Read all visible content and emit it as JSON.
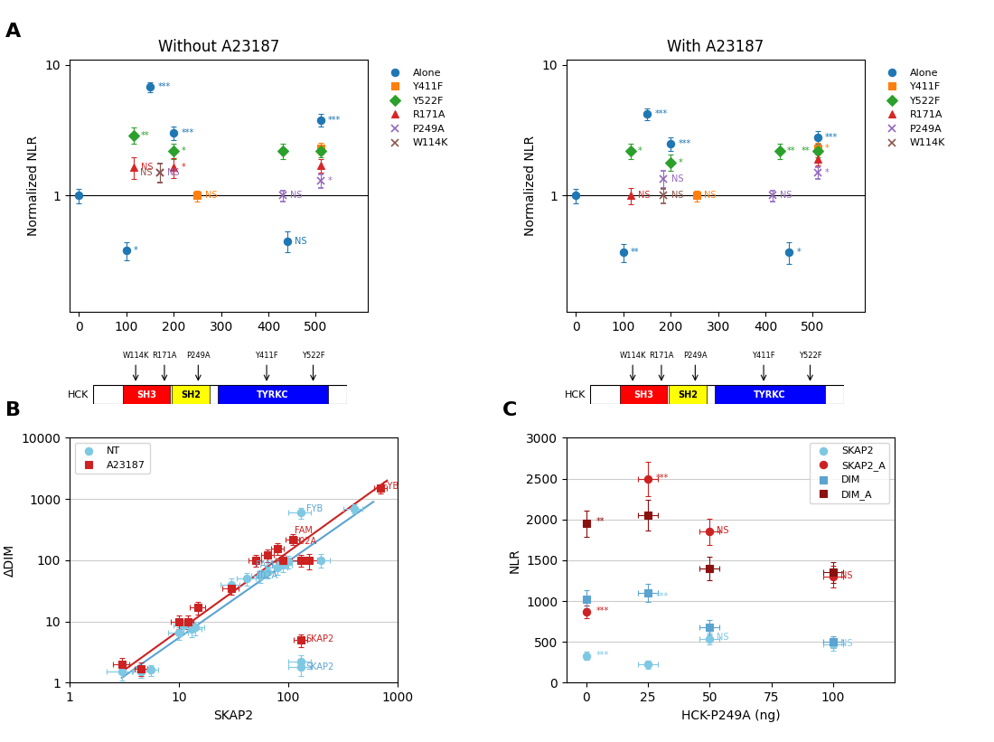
{
  "chart_data": [
    {
      "type": "scatter",
      "panel_label": "A",
      "title": "Without A23187",
      "ylabel": "Normalized NLR",
      "log": "y",
      "xlim": [
        -20,
        610
      ],
      "xticks": [
        0,
        100,
        200,
        300,
        400,
        500
      ],
      "ylim": [
        0.13,
        11
      ],
      "yticks": [
        1,
        10
      ],
      "hline": 1,
      "grid": false,
      "legend": "upper right",
      "series": [
        {
          "name": "Alone",
          "marker": "circle",
          "x": [
            0,
            100,
            150,
            200,
            440,
            510
          ],
          "values": [
            1.0,
            0.38,
            6.8,
            3.0,
            0.45,
            3.8
          ],
          "yerr": [
            0.12,
            0.06,
            0.6,
            0.35,
            0.08,
            0.4
          ],
          "point_labels": [
            null,
            "*",
            "***",
            "***",
            "NS",
            "***"
          ]
        },
        {
          "name": "Y411F",
          "marker": "square",
          "x": [
            250,
            510
          ],
          "values": [
            1.0,
            2.3
          ],
          "yerr": [
            0.1,
            0.25
          ],
          "point_labels": [
            "NS",
            null
          ]
        },
        {
          "name": "Y522F",
          "marker": "diamond",
          "x": [
            115,
            200,
            430,
            510
          ],
          "values": [
            2.9,
            2.2,
            2.2,
            2.2
          ],
          "yerr": [
            0.4,
            0.3,
            0.3,
            0.25
          ],
          "point_labels": [
            "**",
            "*",
            null,
            null
          ]
        },
        {
          "name": "R171A",
          "marker": "triangle",
          "x": [
            115,
            200,
            510
          ],
          "values": [
            1.65,
            1.65,
            1.7
          ],
          "yerr": [
            0.3,
            0.28,
            0.2
          ],
          "point_labels": [
            "NS",
            "*",
            null
          ]
        },
        {
          "name": "P249A",
          "marker": "x",
          "x": [
            170,
            430,
            510
          ],
          "values": [
            1.5,
            1.0,
            1.3
          ],
          "yerr": [
            0.25,
            0.1,
            0.15
          ],
          "point_labels": [
            "NS",
            "NS",
            "*"
          ]
        },
        {
          "name": "W114K",
          "marker": "x",
          "x": [
            170
          ],
          "values": [
            1.5
          ],
          "yerr": [
            0.25
          ],
          "point_labels": [
            "NS"
          ]
        }
      ],
      "protein": "HCK",
      "domain_range": [
        0,
        600
      ],
      "domains": [
        {
          "name": "SH3",
          "start": 70,
          "end": 180,
          "color": "red"
        },
        {
          "name": "SH2",
          "start": 185,
          "end": 275,
          "color": "yellow"
        },
        {
          "name": "TYRKC",
          "start": 295,
          "end": 555,
          "color": "blue"
        }
      ],
      "mutations": [
        {
          "x": 100,
          "label": "W114K"
        },
        {
          "x": 168,
          "label": "R171A"
        },
        {
          "x": 248,
          "label": "P249A"
        },
        {
          "x": 410,
          "label": "Y411F"
        },
        {
          "x": 520,
          "label": "Y522F"
        }
      ]
    },
    {
      "type": "scatter",
      "title": "With A23187",
      "ylabel": "Normalized NLR",
      "log": "y",
      "xlim": [
        -20,
        610
      ],
      "xticks": [
        0,
        100,
        200,
        300,
        400,
        500
      ],
      "ylim": [
        0.13,
        11
      ],
      "yticks": [
        1,
        10
      ],
      "hline": 1,
      "grid": false,
      "legend": "upper right",
      "series": [
        {
          "name": "Alone",
          "marker": "circle",
          "x": [
            0,
            100,
            150,
            200,
            450,
            510
          ],
          "values": [
            1.0,
            0.37,
            4.2,
            2.5,
            0.37,
            2.8
          ],
          "yerr": [
            0.12,
            0.06,
            0.45,
            0.3,
            0.07,
            0.3
          ],
          "point_labels": [
            null,
            "**",
            "***",
            "***",
            "*",
            "***"
          ]
        },
        {
          "name": "Y411F",
          "marker": "square",
          "x": [
            255,
            510
          ],
          "values": [
            1.0,
            2.3
          ],
          "yerr": [
            0.1,
            0.25
          ],
          "point_labels": [
            "NS",
            "*"
          ]
        },
        {
          "name": "Y522F",
          "marker": "diamond",
          "x": [
            115,
            200,
            430,
            510
          ],
          "values": [
            2.2,
            1.8,
            2.2,
            2.2
          ],
          "yerr": [
            0.3,
            0.25,
            0.3,
            0.25
          ],
          "point_labels": [
            "*",
            "*",
            "**",
            "**"
          ]
        },
        {
          "name": "R171A",
          "marker": "triangle",
          "x": [
            115,
            510
          ],
          "values": [
            1.0,
            1.9
          ],
          "yerr": [
            0.14,
            0.2
          ],
          "point_labels": [
            "NS",
            null
          ]
        },
        {
          "name": "P249A",
          "marker": "x",
          "x": [
            185,
            415,
            510
          ],
          "values": [
            1.35,
            1.0,
            1.5
          ],
          "yerr": [
            0.2,
            0.1,
            0.15
          ],
          "point_labels": [
            "NS",
            "NS",
            "*"
          ]
        },
        {
          "name": "W114K",
          "marker": "x",
          "x": [
            185
          ],
          "values": [
            1.0
          ],
          "yerr": [
            0.13
          ],
          "point_labels": [
            "NS"
          ]
        }
      ],
      "protein": "HCK",
      "domain_range": [
        0,
        600
      ],
      "domains": [
        {
          "name": "SH3",
          "start": 70,
          "end": 180,
          "color": "red"
        },
        {
          "name": "SH2",
          "start": 185,
          "end": 275,
          "color": "yellow"
        },
        {
          "name": "TYRKC",
          "start": 295,
          "end": 555,
          "color": "blue"
        }
      ],
      "mutations": [
        {
          "x": 100,
          "label": "W114K"
        },
        {
          "x": 168,
          "label": "R171A"
        },
        {
          "x": 248,
          "label": "P249A"
        },
        {
          "x": 410,
          "label": "Y411F"
        },
        {
          "x": 520,
          "label": "Y522F"
        }
      ]
    },
    {
      "type": "scatter",
      "panel_label": "B",
      "xlabel": "SKAP2",
      "ylabel": "ΔDIM",
      "log": true,
      "xlim": [
        1,
        1000
      ],
      "xticks": [
        1,
        10,
        100,
        1000
      ],
      "ylim": [
        1,
        10000
      ],
      "yticks": [
        1,
        10,
        100,
        1000,
        10000
      ],
      "grid": "y",
      "legend": "upper left",
      "series": [
        {
          "name": "NT",
          "marker": "circle",
          "color": "#7EC8E3",
          "x": [
            3,
            4.5,
            5.5,
            10,
            11,
            13,
            14,
            30,
            42,
            55,
            65,
            80,
            90,
            100,
            200,
            130,
            400,
            130,
            130
          ],
          "values": [
            1.5,
            1.5,
            1.6,
            6.5,
            8.5,
            7.5,
            8.0,
            40,
            50,
            55,
            65,
            75,
            85,
            95,
            100,
            600,
            700,
            2.2,
            1.8
          ],
          "xerr": [
            0.8,
            0.8,
            1.0,
            2.0,
            2.0,
            3.0,
            3.0,
            6,
            8,
            9,
            10,
            18,
            18,
            22,
            40,
            30,
            80,
            30,
            30
          ],
          "yerr": [
            0.4,
            0.3,
            0.3,
            1.5,
            2.0,
            2.0,
            2.0,
            10,
            12,
            13,
            14,
            18,
            20,
            22,
            25,
            120,
            120,
            0.6,
            0.5
          ]
        },
        {
          "name": "A23187",
          "marker": "square",
          "color": "#CC2222",
          "x": [
            3,
            4.5,
            10,
            12,
            15,
            30,
            50,
            65,
            80,
            90,
            110,
            130,
            155,
            700,
            130
          ],
          "values": [
            2.0,
            1.7,
            10,
            10,
            17,
            35,
            100,
            120,
            155,
            100,
            220,
            100,
            100,
            1500,
            5.0
          ],
          "xerr": [
            0.5,
            0.6,
            1.5,
            1.5,
            2.5,
            5,
            7,
            9,
            11,
            13,
            16,
            22,
            28,
            90,
            18
          ],
          "yerr": [
            0.5,
            0.4,
            2.5,
            2.5,
            4.0,
            8,
            22,
            28,
            35,
            22,
            45,
            22,
            28,
            250,
            1.2
          ]
        }
      ],
      "trend_lines": [
        {
          "x": [
            3,
            600
          ],
          "values": [
            1.2,
            900
          ],
          "color": "#5BA3D0"
        },
        {
          "x": [
            3,
            800
          ],
          "values": [
            1.5,
            2000
          ],
          "color": "#CC2222"
        }
      ],
      "annotations": [
        {
          "x": 145,
          "y": 700,
          "text": "FYB",
          "color": "#5BA3D0"
        },
        {
          "x": 50,
          "y": 68,
          "text": "FAM\n102A",
          "color": "#5BA3D0"
        },
        {
          "x": 145,
          "y": 1.8,
          "text": "SKAP2",
          "color": "#5BA3D0"
        },
        {
          "x": 730,
          "y": 1600,
          "text": "FYB",
          "color": "#CC2222"
        },
        {
          "x": 115,
          "y": 250,
          "text": "FAM\n102A",
          "color": "#CC2222"
        },
        {
          "x": 145,
          "y": 5.2,
          "text": "SKAP2",
          "color": "#CC2222"
        }
      ]
    },
    {
      "type": "scatter",
      "panel_label": "C",
      "xlabel": "HCK-P249A (ng)",
      "ylabel": "NLR",
      "xlim": [
        -8,
        125
      ],
      "xticks": [
        0,
        25,
        50,
        75,
        100
      ],
      "ylim": [
        0,
        3000
      ],
      "yticks": [
        0,
        500,
        1000,
        1500,
        2000,
        2500,
        3000
      ],
      "grid": "y",
      "legend": "upper right",
      "series": [
        {
          "name": "SKAP2",
          "marker": "circle",
          "color": "#7EC8E3",
          "x": [
            0,
            25,
            50,
            100
          ],
          "values": [
            330,
            220,
            540,
            470
          ],
          "xerr": [
            0,
            4,
            4,
            4
          ],
          "yerr": [
            55,
            45,
            75,
            75
          ]
        },
        {
          "name": "SKAP2_A",
          "marker": "circle",
          "color": "#CC2222",
          "x": [
            0,
            25,
            50,
            100
          ],
          "values": [
            870,
            2500,
            1850,
            1300
          ],
          "xerr": [
            0,
            4,
            4,
            4
          ],
          "yerr": [
            80,
            210,
            160,
            130
          ]
        },
        {
          "name": "DIM",
          "marker": "square",
          "color": "#5BA3D0",
          "x": [
            0,
            25,
            50,
            100
          ],
          "values": [
            1020,
            1100,
            680,
            500
          ],
          "xerr": [
            0,
            4,
            4,
            4
          ],
          "yerr": [
            110,
            110,
            85,
            72
          ]
        },
        {
          "name": "DIM_A",
          "marker": "square",
          "color": "#8B1010",
          "x": [
            0,
            25,
            50,
            100
          ],
          "values": [
            1950,
            2050,
            1400,
            1350
          ],
          "xerr": [
            0,
            4,
            4,
            4
          ],
          "yerr": [
            160,
            190,
            140,
            130
          ]
        }
      ],
      "annotations": [
        {
          "x": 4,
          "y": 340,
          "text": "***",
          "color": "#7EC8E3"
        },
        {
          "x": 4,
          "y": 880,
          "text": "***",
          "color": "#CC2222"
        },
        {
          "x": 28,
          "y": 2510,
          "text": "***",
          "color": "#CC2222"
        },
        {
          "x": 28,
          "y": 1050,
          "text": "***",
          "color": "#7EC8E3"
        },
        {
          "x": 53,
          "y": 1860,
          "text": "NS",
          "color": "#CC2222"
        },
        {
          "x": 53,
          "y": 560,
          "text": "NS",
          "color": "#7EC8E3"
        },
        {
          "x": 103,
          "y": 1310,
          "text": "NS",
          "color": "#CC2222"
        },
        {
          "x": 103,
          "y": 480,
          "text": "NS",
          "color": "#7EC8E3"
        },
        {
          "x": 4,
          "y": 1980,
          "text": "**",
          "color": "#8B1010"
        }
      ]
    }
  ]
}
